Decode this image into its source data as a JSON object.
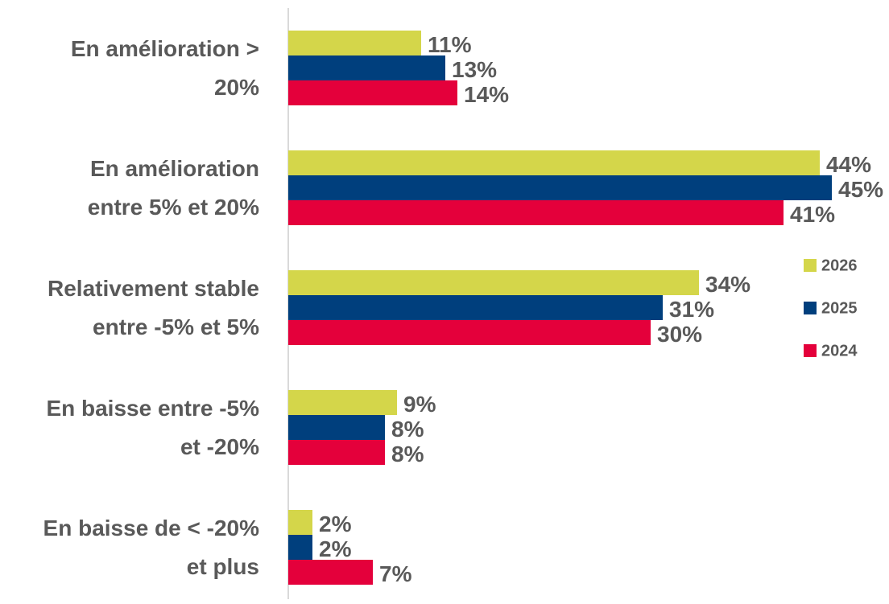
{
  "chart_data": {
    "type": "bar",
    "orientation": "horizontal",
    "categories": [
      "En amélioration >\n20%",
      "En amélioration\nentre 5% et 20%",
      "Relativement stable\nentre -5% et 5%",
      "En baisse entre -5%\net -20%",
      "En baisse de < -20%\net plus"
    ],
    "series": [
      {
        "name": "2026",
        "color": "#d4d64a",
        "values": [
          11,
          44,
          34,
          9,
          2
        ],
        "value_labels": [
          "11%",
          "44%",
          "34%",
          "9%",
          "2%"
        ]
      },
      {
        "name": "2025",
        "color": "#003f7d",
        "values": [
          13,
          45,
          31,
          8,
          2
        ],
        "value_labels": [
          "13%",
          "45%",
          "31%",
          "8%",
          "2%"
        ]
      },
      {
        "name": "2024",
        "color": "#e4003b",
        "values": [
          14,
          41,
          30,
          8,
          7
        ],
        "value_labels": [
          "14%",
          "41%",
          "30%",
          "8%",
          "7%"
        ]
      }
    ],
    "xlim": [
      0,
      45
    ],
    "legend": "right"
  }
}
